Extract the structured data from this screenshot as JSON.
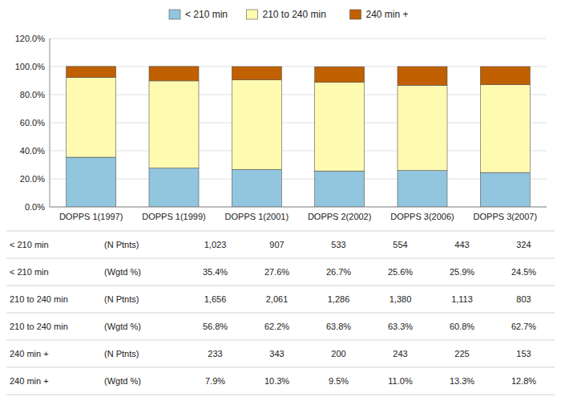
{
  "chart_data": {
    "type": "bar",
    "stacked": true,
    "grid": true,
    "legend": "top",
    "categories": [
      "DOPPS 1(1997)",
      "DOPPS 1(1999)",
      "DOPPS 1(2001)",
      "DOPPS 2(2002)",
      "DOPPS 3(2006)",
      "DOPPS 3(2007)"
    ],
    "series": [
      {
        "name": "< 210 min",
        "color": "#92C5DE",
        "values": [
          35.4,
          27.6,
          26.7,
          25.6,
          25.9,
          24.5
        ]
      },
      {
        "name": "210 to 240 min",
        "color": "#FEFAB0",
        "values": [
          56.8,
          62.2,
          63.8,
          63.3,
          60.8,
          62.7
        ]
      },
      {
        "name": "240 min +",
        "color": "#C06000",
        "values": [
          7.9,
          10.3,
          9.5,
          11.0,
          13.3,
          12.8
        ]
      }
    ],
    "ylim": [
      0,
      120
    ],
    "yticks": [
      {
        "value": 0,
        "label": "0.0%"
      },
      {
        "value": 20,
        "label": "20.0%"
      },
      {
        "value": 40,
        "label": "40.0%"
      },
      {
        "value": 60,
        "label": "60.0%"
      },
      {
        "value": 80,
        "label": "80.0%"
      },
      {
        "value": 100,
        "label": "100.0%"
      },
      {
        "value": 120,
        "label": "120.0%"
      }
    ],
    "table": {
      "rows": [
        [
          "< 210 min",
          "(N Ptnts)",
          "1,023",
          "907",
          "533",
          "554",
          "443",
          "324"
        ],
        [
          "< 210 min",
          "(Wgtd %)",
          "35.4%",
          "27.6%",
          "26.7%",
          "25.6%",
          "25.9%",
          "24.5%"
        ],
        [
          "210 to 240 min",
          "(N Ptnts)",
          "1,656",
          "2,061",
          "1,286",
          "1,380",
          "1,113",
          "803"
        ],
        [
          "210 to 240 min",
          "(Wgtd %)",
          "56.8%",
          "62.2%",
          "63.8%",
          "63.3%",
          "60.8%",
          "62.7%"
        ],
        [
          "240 min +",
          "(N Ptnts)",
          "233",
          "343",
          "200",
          "243",
          "225",
          "153"
        ],
        [
          "240 min +",
          "(Wgtd %)",
          "7.9%",
          "10.3%",
          "9.5%",
          "11.0%",
          "13.3%",
          "12.8%"
        ]
      ]
    }
  }
}
